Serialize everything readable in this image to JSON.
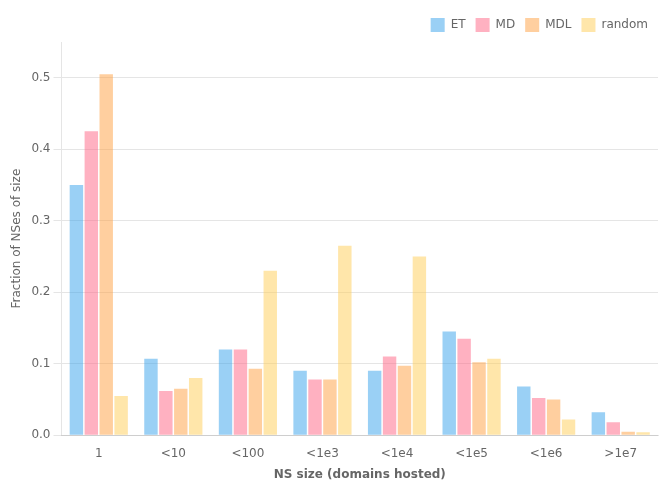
{
  "chart_data": {
    "type": "bar",
    "categories": [
      "1",
      "<10",
      "<100",
      "<1e3",
      "<1e4",
      "<1e5",
      "<1e6",
      ">1e7"
    ],
    "series": [
      {
        "name": "ET",
        "values": [
          0.35,
          0.107,
          0.12,
          0.09,
          0.09,
          0.145,
          0.068,
          0.032
        ]
      },
      {
        "name": "MD",
        "values": [
          0.425,
          0.062,
          0.12,
          0.078,
          0.11,
          0.135,
          0.052,
          0.018
        ]
      },
      {
        "name": "MDL",
        "values": [
          0.505,
          0.065,
          0.093,
          0.078,
          0.097,
          0.102,
          0.05,
          0.005
        ]
      },
      {
        "name": "random",
        "values": [
          0.055,
          0.08,
          0.23,
          0.265,
          0.25,
          0.107,
          0.022,
          0.004
        ]
      }
    ],
    "x_label": "NS size (domains hosted)",
    "y_label": "Fraction of NSes of size",
    "ylim": [
      0,
      0.55
    ],
    "yticks": [
      {
        "value": 0,
        "label": "0.0"
      },
      0.1,
      0.2,
      0.3,
      0.4,
      0.5
    ],
    "grid": "y",
    "legend": "upper right"
  }
}
